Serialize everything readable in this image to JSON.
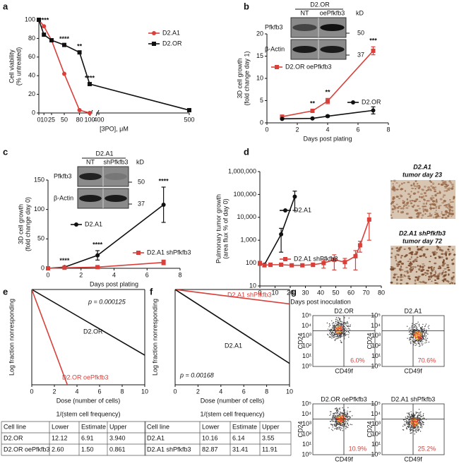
{
  "panel_labels": [
    "a",
    "b",
    "c",
    "d",
    "e",
    "f",
    "g"
  ],
  "chart_data": [
    {
      "type": "line",
      "ylabel": [
        "Cell viability",
        "(% untreated)"
      ],
      "xlabel": [
        "[3PO], μM"
      ],
      "xlim": [
        0,
        500
      ],
      "x_break": [
        100,
        400
      ],
      "xticks": [
        0,
        10,
        25,
        50,
        80,
        100,
        400,
        500
      ],
      "ylim": [
        0,
        100
      ],
      "yticks": [
        0,
        20,
        40,
        60,
        80,
        100
      ],
      "series": [
        {
          "name": "D2.A1",
          "color": "#d9403a",
          "marker": "circle",
          "x": [
            0,
            10,
            25,
            50,
            80,
            100
          ],
          "values": [
            100,
            93,
            78,
            42,
            3,
            0
          ]
        },
        {
          "name": "D2.OR",
          "color": "#111111",
          "marker": "square",
          "x": [
            0,
            10,
            25,
            50,
            80,
            100,
            500
          ],
          "values": [
            100,
            84,
            78,
            73,
            65,
            31,
            3
          ]
        }
      ],
      "annotations": [
        {
          "text": "****",
          "x": 10
        },
        {
          "text": "****",
          "x": 50
        },
        {
          "text": "**",
          "x": 80
        },
        {
          "text": "****",
          "x": 100
        }
      ]
    },
    {
      "type": "line",
      "ylabel": [
        "3D cell growth",
        "(fold change day 1)"
      ],
      "xlabel": [
        "Days post plating"
      ],
      "xlim": [
        0,
        8
      ],
      "xticks": [
        0,
        2,
        4,
        6,
        8
      ],
      "ylim": [
        0,
        20
      ],
      "yticks": [
        0,
        5,
        10,
        15,
        20
      ],
      "series": [
        {
          "name": "D2.OR oePfkfb3",
          "color": "#d9403a",
          "marker": "square",
          "x": [
            1,
            3,
            4,
            7
          ],
          "values": [
            1.4,
            2.7,
            4.9,
            16.2
          ],
          "errors": [
            0.3,
            0.3,
            0.6,
            0.9
          ]
        },
        {
          "name": "D2.OR",
          "color": "#111111",
          "marker": "circle",
          "x": [
            1,
            3,
            4,
            7
          ],
          "values": [
            0.9,
            1.0,
            1.5,
            2.8
          ],
          "errors": [
            0.1,
            0.1,
            0.2,
            0.8
          ]
        }
      ],
      "annotations": [
        {
          "text": "**",
          "x": 3
        },
        {
          "text": "**",
          "x": 4
        },
        {
          "text": "***",
          "x": 7
        }
      ]
    },
    {
      "type": "line",
      "ylabel": [
        "3D cell growth",
        "(fold change day 0)"
      ],
      "xlabel": [
        "Days post plating"
      ],
      "xlim": [
        0,
        8
      ],
      "xticks": [
        0,
        2,
        4,
        6,
        8
      ],
      "ylim": [
        0,
        150
      ],
      "yticks": [
        0,
        50,
        100,
        150
      ],
      "series": [
        {
          "name": "D2.A1",
          "color": "#111111",
          "marker": "circle",
          "x": [
            0,
            1,
            3,
            7
          ],
          "values": [
            0,
            2,
            22,
            108
          ],
          "errors": [
            0,
            1,
            8,
            30
          ]
        },
        {
          "name": "D2.A1 shPfkfb3",
          "color": "#d9403a",
          "marker": "square",
          "x": [
            0,
            1,
            3,
            7
          ],
          "values": [
            0,
            1,
            2,
            10
          ],
          "errors": [
            0,
            0.5,
            1,
            4
          ]
        }
      ],
      "annotations": [
        {
          "text": "****",
          "x": 1
        },
        {
          "text": "****",
          "x": 3
        },
        {
          "text": "****",
          "x": 7
        }
      ]
    },
    {
      "type": "line",
      "ylabel": [
        "Pulmonary tumor growth",
        "(area flux % of day 0)"
      ],
      "xlabel": [
        "Days post inoculation"
      ],
      "xlim": [
        0,
        80
      ],
      "xticks": [
        0,
        10,
        20,
        30,
        40,
        50,
        60,
        70,
        80
      ],
      "ylog": true,
      "ylim": [
        10,
        1000000
      ],
      "yticks": [
        10,
        100,
        {
          "value": 1000,
          "label": "1,000"
        },
        {
          "value": 10000,
          "label": "10,000"
        },
        {
          "value": 100000,
          "label": "100,000"
        },
        {
          "value": 1000000,
          "label": "1,000,000"
        }
      ],
      "series": [
        {
          "name": "D2.A1",
          "color": "#111111",
          "marker": "circle",
          "x": [
            0,
            3,
            14,
            23
          ],
          "values": [
            95,
            85,
            1800,
            80000
          ],
          "errors": [
            15,
            10,
            1500,
            60000
          ]
        },
        {
          "name": "D2.A1 shPfkfb3",
          "color": "#d9403a",
          "marker": "square",
          "x": [
            0,
            3,
            7,
            14,
            21,
            28,
            35,
            42,
            49,
            56,
            63,
            66,
            72
          ],
          "values": [
            100,
            80,
            85,
            85,
            80,
            80,
            85,
            100,
            140,
            110,
            200,
            600,
            8000
          ],
          "errors": [
            20,
            10,
            15,
            10,
            10,
            10,
            15,
            40,
            90,
            50,
            150,
            300,
            7000
          ]
        }
      ]
    },
    {
      "type": "line",
      "ylabel": [
        "Log fraction nonresponding"
      ],
      "xlabel": [
        "Dose (number of cells)",
        "1/(stem cell frequency)"
      ],
      "xlim": [
        0,
        10
      ],
      "xticks": [
        0,
        2,
        4,
        6,
        8,
        10
      ],
      "ylim": [
        -2.1,
        0
      ],
      "note": "p = 0.000125",
      "series": [
        {
          "name": "D2.OR",
          "color": "#111111",
          "x": [
            0,
            10
          ],
          "values": [
            0,
            -1.447
          ]
        },
        {
          "name": "D2.OR oePfkfb3",
          "color": "#d9403a",
          "x": [
            0,
            4.3
          ],
          "values": [
            0,
            -2.87
          ]
        }
      ]
    },
    {
      "type": "line",
      "ylabel": [
        "Log fraction nonresponding"
      ],
      "xlabel": [
        "Dose (number of cells)",
        "1/(stem cell frequency)"
      ],
      "xlim": [
        0,
        10
      ],
      "xticks": [
        0,
        2,
        4,
        6,
        8,
        10
      ],
      "ylim": [
        -2.1,
        0
      ],
      "note": "p = 0.00168",
      "series": [
        {
          "name": "D2.A1 shPfkfb3",
          "color": "#d9403a",
          "x": [
            0,
            10
          ],
          "values": [
            0,
            -0.318
          ]
        },
        {
          "name": "D2.A1",
          "color": "#111111",
          "x": [
            0,
            10
          ],
          "values": [
            0,
            -1.629
          ]
        }
      ]
    }
  ],
  "blots": [
    {
      "group": "D2.OR",
      "lanes": [
        "NT",
        "oePfkfb3"
      ],
      "unit": "kD",
      "rows": [
        "Pfkfb3",
        "β-Actin"
      ],
      "markers": [
        "50",
        "37"
      ]
    },
    {
      "group": "D2.A1",
      "lanes": [
        "NT",
        "shPfkfb3"
      ],
      "unit": "kD",
      "rows": [
        "Pfkfb3",
        "β-Actin"
      ],
      "markers": [
        "50",
        "37"
      ]
    }
  ],
  "images": [
    [
      "D2.A1",
      "tumor day 23"
    ],
    [
      "D2.A1 shPfkfb3",
      "tumor day 72"
    ]
  ],
  "tables": [
    {
      "columns": [
        "Cell line",
        "Lower",
        "Estimate",
        "Upper"
      ],
      "rows": [
        [
          "D2.OR",
          "12.12",
          "6.91",
          "3.940"
        ],
        [
          "D2.OR oePfkfb3",
          "2.60",
          "1.50",
          "0.861"
        ]
      ]
    },
    {
      "columns": [
        "Cell line",
        "Lower",
        "Estimate",
        "Upper"
      ],
      "rows": [
        [
          "D2.A1",
          "10.16",
          "6.14",
          "3.55"
        ],
        [
          "D2.A1 shPfkfb3",
          "82.87",
          "31.41",
          "11.91"
        ]
      ]
    }
  ],
  "flow": {
    "ylabel": "CD24",
    "xlabel": "CD49f",
    "ticks": [
      "10⁰",
      "10¹",
      "10²",
      "10³",
      "10⁴",
      "10⁵"
    ],
    "plots": [
      {
        "title": "D2.OR",
        "percent": "6.0%"
      },
      {
        "title": "D2.A1",
        "percent": "70.6%"
      },
      {
        "title": "D2.OR oePfkfb3",
        "percent": "10.9%"
      },
      {
        "title": "D2.A1 shPfkfb3",
        "percent": "25.2%"
      }
    ]
  }
}
